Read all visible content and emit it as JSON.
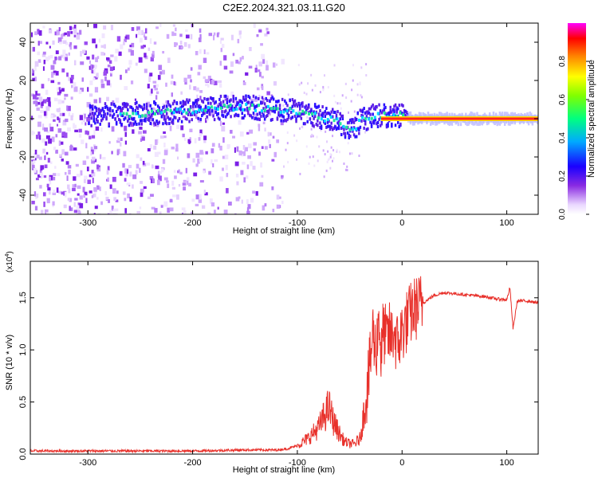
{
  "figure_title": "C2E2.2024.321.03.11.G20",
  "chart_data": [
    {
      "type": "heatmap",
      "title": "",
      "xlabel": "Height of straight line (km)",
      "ylabel": "Frequency (Hz)",
      "xlim": [
        -355,
        130
      ],
      "ylim": [
        -50,
        50
      ],
      "xticks": [
        -300,
        -200,
        -100,
        0,
        100
      ],
      "yticks": [
        -40,
        -20,
        0,
        20,
        40
      ],
      "colorbar": {
        "label": "Normalized spectral amplitude",
        "range": [
          0,
          1
        ],
        "ticks": [
          "0.0",
          "0.2",
          "0.4",
          "0.6",
          "0.8"
        ],
        "colormap": [
          "#ffffff",
          "#e8d6ff",
          "#7a1fe0",
          "#0000ff",
          "#00d8ff",
          "#00ff40",
          "#ffff00",
          "#ff8000",
          "#ff0000",
          "#ff00ff"
        ]
      },
      "ridge": {
        "description": "main spectral line frequency vs height",
        "x": [
          -270,
          -240,
          -200,
          -170,
          -150,
          -120,
          -100,
          -80,
          -60,
          -50,
          -45,
          -40,
          -30,
          -20,
          -10,
          0,
          10,
          50,
          100,
          130
        ],
        "y": [
          2,
          3,
          4,
          6,
          6,
          5,
          4,
          1,
          -2,
          -6,
          -4,
          -1,
          1,
          2,
          1,
          2,
          0,
          0,
          0,
          0
        ]
      }
    },
    {
      "type": "line",
      "title": "",
      "xlabel": "Height of straight line (km)",
      "ylabel": "SNR (10 * v/v)",
      "scale_note": "(x10",
      "scale_exp": "4",
      "xlim": [
        -355,
        130
      ],
      "ylim": [
        0,
        1.85
      ],
      "xticks": [
        -300,
        -200,
        -100,
        0,
        100
      ],
      "yticks": [
        "0.0",
        "0.5",
        "1.0",
        "1.5"
      ],
      "series": [
        {
          "color": "#e8302a",
          "x": [
            -355,
            -300,
            -250,
            -200,
            -150,
            -120,
            -110,
            -100,
            -90,
            -80,
            -75,
            -70,
            -65,
            -60,
            -55,
            -50,
            -45,
            -40,
            -35,
            -30,
            -28,
            -25,
            -22,
            -20,
            -18,
            -15,
            -12,
            -10,
            -8,
            -5,
            -2,
            0,
            5,
            10,
            20,
            30,
            40,
            50,
            60,
            70,
            80,
            90,
            100,
            103,
            106,
            110,
            120,
            130
          ],
          "y": [
            0.03,
            0.03,
            0.03,
            0.03,
            0.04,
            0.04,
            0.05,
            0.08,
            0.15,
            0.25,
            0.35,
            0.45,
            0.3,
            0.2,
            0.12,
            0.1,
            0.1,
            0.15,
            0.5,
            0.9,
            1.2,
            0.95,
            1.35,
            0.9,
            1.2,
            1.1,
            1.15,
            1.1,
            1.2,
            1.05,
            1.1,
            1.18,
            1.28,
            1.38,
            1.45,
            1.52,
            1.55,
            1.54,
            1.53,
            1.52,
            1.51,
            1.49,
            1.48,
            1.6,
            1.2,
            1.47,
            1.47,
            1.45
          ]
        }
      ]
    }
  ]
}
